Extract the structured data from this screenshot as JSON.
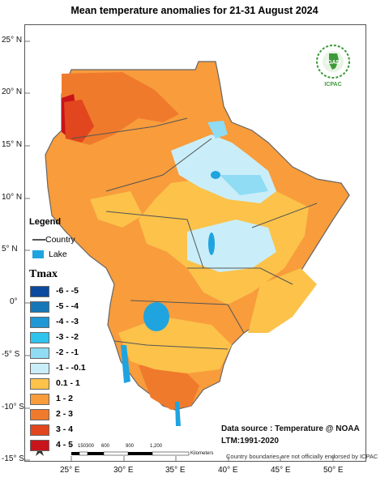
{
  "title": "Mean temperature anomalies for 21-31 August 2024",
  "latitude_labels": [
    "25° N",
    "20° N",
    "15° N",
    "10° N",
    "5° N",
    "0°",
    "-5° S",
    "-10° S",
    "-15° S"
  ],
  "longitude_labels": [
    "25° E",
    "30° E",
    "35° E",
    "40° E",
    "45° E",
    "50° E"
  ],
  "legend": {
    "title": "Legend",
    "country_label": "Country",
    "lake_label": "Lake",
    "lake_color": "#1fa4df",
    "tmax_title": "Tmax",
    "classes": [
      {
        "label": "-6 - -5",
        "color": "#0b4a9e"
      },
      {
        "label": "-5 - -4",
        "color": "#1677b8"
      },
      {
        "label": "-4 - -3",
        "color": "#1f97d4"
      },
      {
        "label": "-3 - -2",
        "color": "#2ec4ee"
      },
      {
        "label": "-2 - -1",
        "color": "#8fdcf4"
      },
      {
        "label": "-1 - -0.1",
        "color": "#c9eef9"
      },
      {
        "label": "0.1 - 1",
        "color": "#fcc24a"
      },
      {
        "label": "1 - 2",
        "color": "#f89c3c"
      },
      {
        "label": "2 - 3",
        "color": "#f07a2c"
      },
      {
        "label": "3 - 4",
        "color": "#e2461e"
      },
      {
        "label": "4 - 5",
        "color": "#c8141a"
      }
    ]
  },
  "logo": {
    "text": "IGAD",
    "org": "ICPAC"
  },
  "source": {
    "line1": "Data source : Temperature @ NOAA",
    "line2": "LTM:1991-2020"
  },
  "disclaimer": "Country boundaries are not officially endorsed by ICPAC",
  "scale": {
    "ticks": [
      "0",
      "150",
      "300",
      "600",
      "900",
      "1,200"
    ],
    "unit": "Kilometers"
  }
}
